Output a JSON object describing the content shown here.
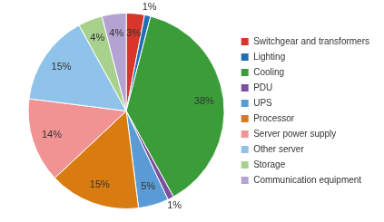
{
  "chart_data": {
    "type": "pie",
    "categories": [
      "Switchgear and transformers",
      "Lighting",
      "Cooling",
      "PDU",
      "UPS",
      "Processor",
      "Server power supply",
      "Other server",
      "Storage",
      "Communication equipment"
    ],
    "values": [
      3,
      1,
      38,
      1,
      5,
      15,
      14,
      15,
      4,
      4
    ],
    "value_labels": [
      "3%",
      "1%",
      "38%",
      "1%",
      "5%",
      "15%",
      "14%",
      "15%",
      "4%",
      "4%"
    ],
    "colors": [
      "#d8352b",
      "#1f6fb4",
      "#3a9d3a",
      "#7d4f9f",
      "#5b9bd5",
      "#d87c12",
      "#f29393",
      "#8fc3ea",
      "#a9d18e",
      "#b4a2d2"
    ],
    "legend": "right",
    "data_labels": true
  }
}
